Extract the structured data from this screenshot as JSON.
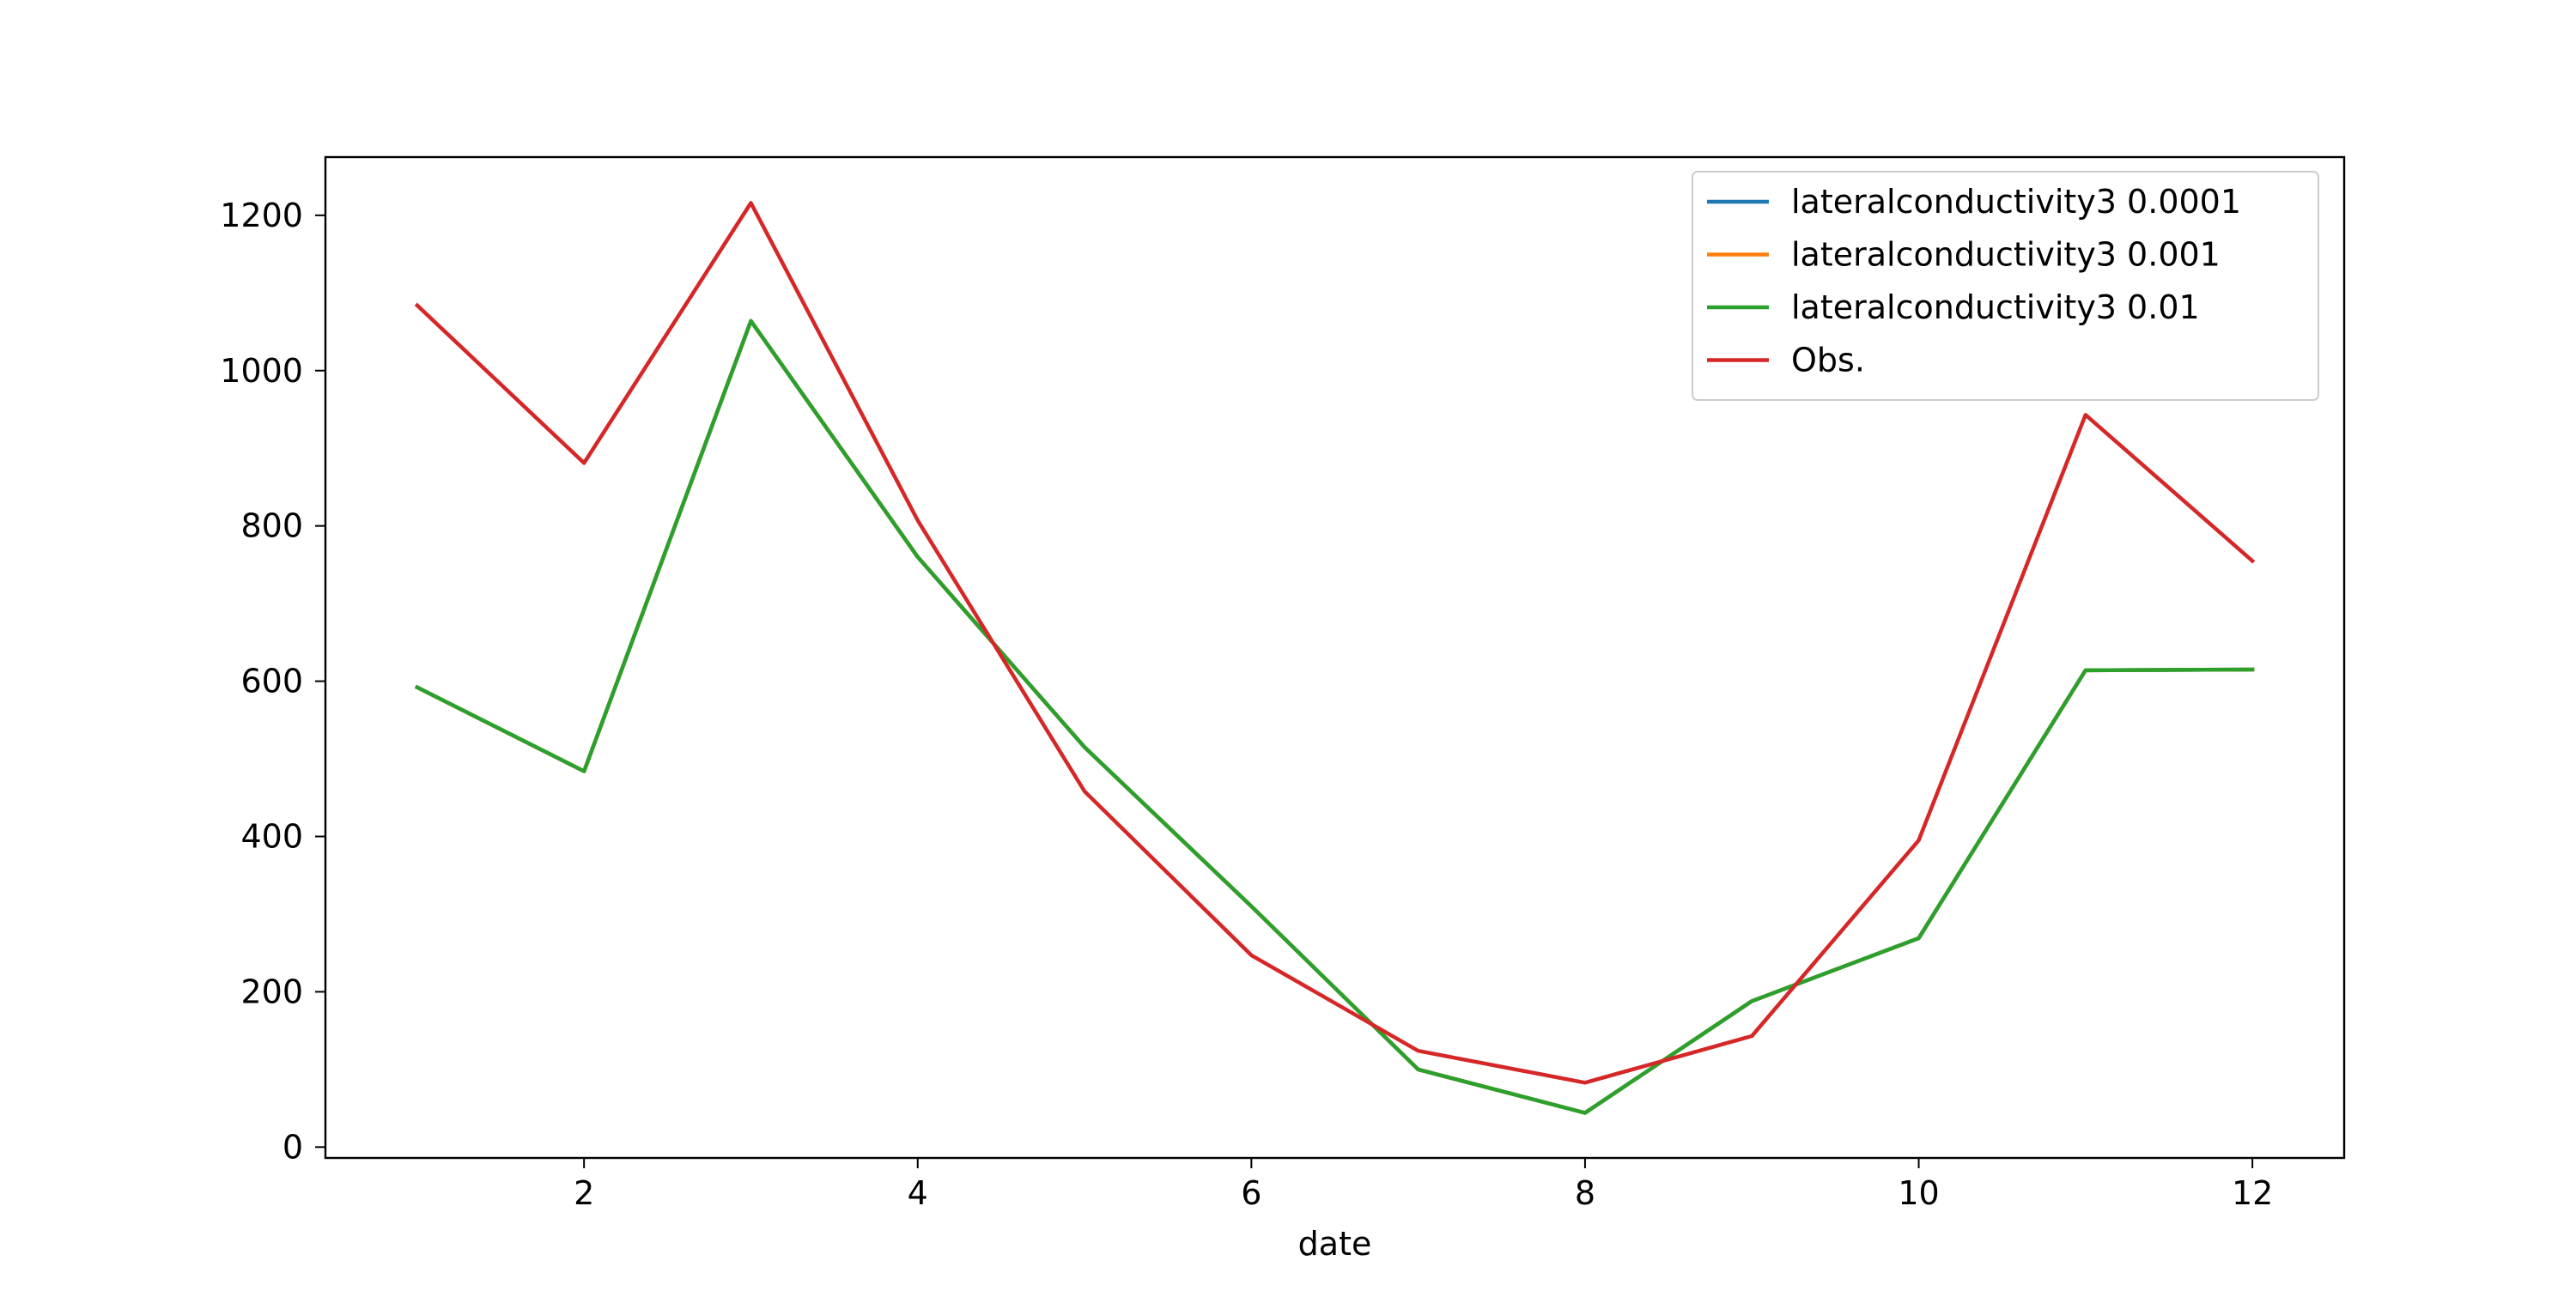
{
  "chart_data": {
    "type": "line",
    "title": "",
    "xlabel": "date",
    "ylabel": "",
    "xlim": [
      0.45,
      12.55
    ],
    "ylim": [
      -14,
      1275
    ],
    "xticks": [
      2,
      4,
      6,
      8,
      10,
      12
    ],
    "yticks": [
      0,
      200,
      400,
      600,
      800,
      1000,
      1200
    ],
    "grid": false,
    "legend_position": "top-right",
    "x": [
      1,
      2,
      3,
      4,
      5,
      6,
      7,
      8,
      9,
      10,
      11,
      12
    ],
    "series": [
      {
        "name": "lateralconductivity3 0.0001",
        "color": "#1f77b4",
        "values": [
          592,
          484,
          1064,
          760,
          515,
          310,
          100,
          44,
          188,
          269,
          614,
          615
        ]
      },
      {
        "name": "lateralconductivity3 0.001",
        "color": "#ff7f0e",
        "values": [
          592,
          484,
          1064,
          760,
          515,
          310,
          100,
          44,
          188,
          269,
          614,
          615
        ]
      },
      {
        "name": "lateralconductivity3 0.01",
        "color": "#2ca02c",
        "values": [
          592,
          484,
          1064,
          760,
          515,
          310,
          100,
          44,
          188,
          269,
          614,
          615
        ]
      },
      {
        "name": "Obs.",
        "color": "#d62728",
        "values": [
          1084,
          881,
          1216,
          807,
          458,
          247,
          124,
          83,
          143,
          395,
          943,
          755
        ]
      }
    ]
  }
}
